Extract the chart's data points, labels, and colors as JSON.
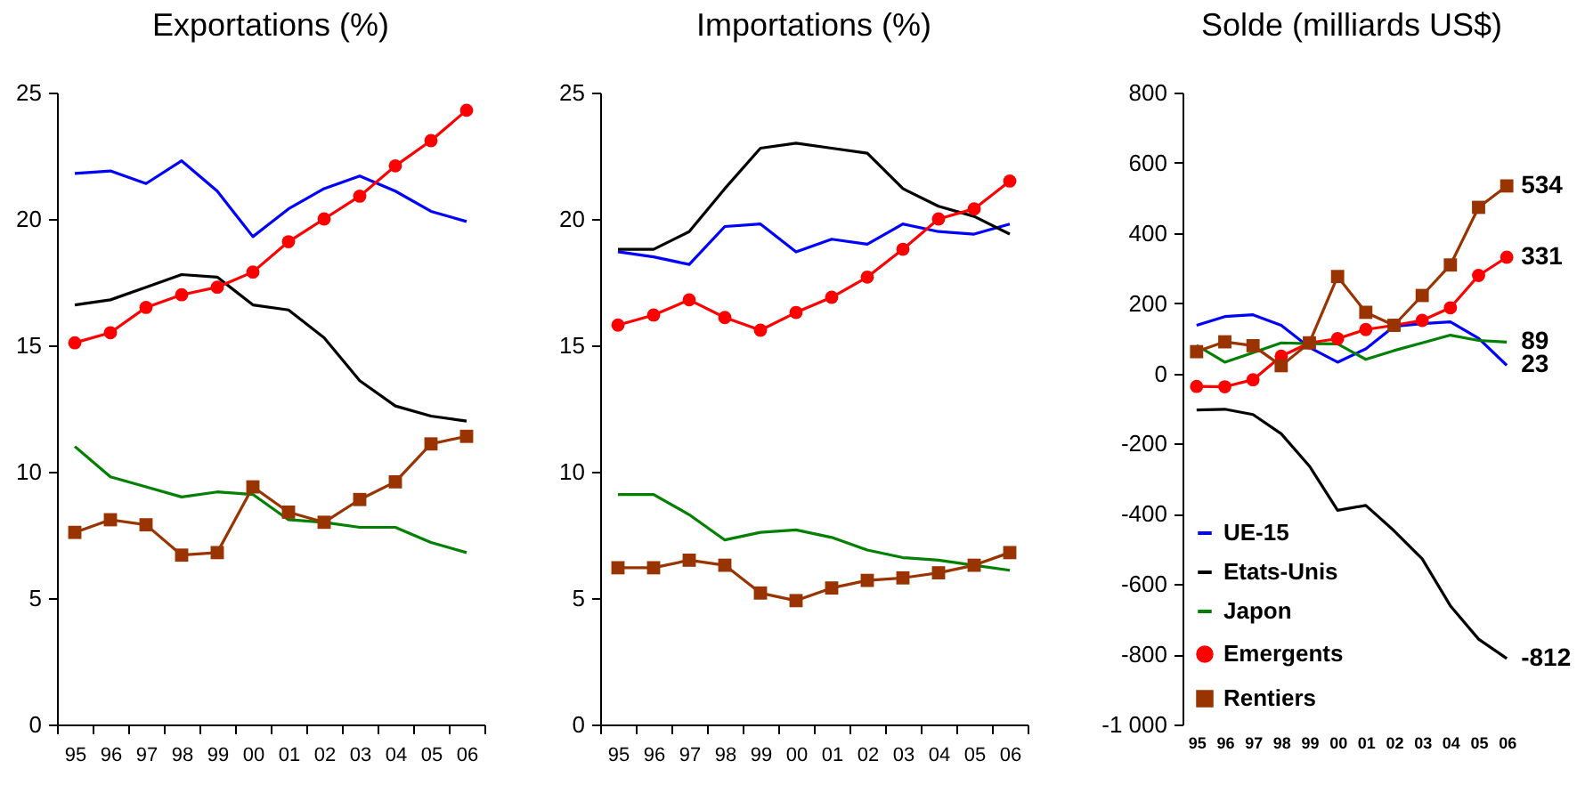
{
  "chart_data": [
    {
      "type": "line",
      "title": "Exportations (%)",
      "categories": [
        "95",
        "96",
        "97",
        "98",
        "99",
        "00",
        "01",
        "02",
        "03",
        "04",
        "05",
        "06"
      ],
      "ylim": [
        0,
        25
      ],
      "yticks": [
        0,
        5,
        10,
        15,
        20,
        25
      ],
      "legend": false,
      "series": [
        {
          "color": "#0000ff",
          "marker": "none",
          "values": [
            21.8,
            21.9,
            21.4,
            22.3,
            21.1,
            19.3,
            20.4,
            21.2,
            21.7,
            21.1,
            20.3,
            19.9
          ]
        },
        {
          "color": "#000000",
          "marker": "none",
          "values": [
            16.6,
            16.8,
            17.3,
            17.8,
            17.7,
            16.6,
            16.4,
            15.3,
            13.6,
            12.6,
            12.2,
            12.0
          ]
        },
        {
          "color": "#008000",
          "marker": "none",
          "values": [
            11.0,
            9.8,
            9.4,
            9.0,
            9.2,
            9.1,
            8.1,
            8.0,
            7.8,
            7.8,
            7.2,
            6.8
          ]
        },
        {
          "color": "#ff0000",
          "marker": "circle",
          "values": [
            15.1,
            15.5,
            16.5,
            17.0,
            17.3,
            17.9,
            19.1,
            20.0,
            20.9,
            22.1,
            23.1,
            24.3
          ]
        },
        {
          "color": "#993300",
          "marker": "square",
          "values": [
            7.6,
            8.1,
            7.9,
            6.7,
            6.8,
            9.4,
            8.4,
            8.0,
            8.9,
            9.6,
            11.1,
            11.4
          ]
        }
      ]
    },
    {
      "type": "line",
      "title": "Importations (%)",
      "categories": [
        "95",
        "96",
        "97",
        "98",
        "99",
        "00",
        "01",
        "02",
        "03",
        "04",
        "05",
        "06"
      ],
      "ylim": [
        0,
        25
      ],
      "yticks": [
        0,
        5,
        10,
        15,
        20,
        25
      ],
      "legend": false,
      "series": [
        {
          "color": "#0000ff",
          "marker": "none",
          "values": [
            18.7,
            18.5,
            18.2,
            19.7,
            19.8,
            18.7,
            19.2,
            19.0,
            19.8,
            19.5,
            19.4,
            19.8
          ]
        },
        {
          "color": "#000000",
          "marker": "none",
          "values": [
            18.8,
            18.8,
            19.5,
            21.2,
            22.8,
            23.0,
            22.8,
            22.6,
            21.2,
            20.5,
            20.1,
            19.4
          ]
        },
        {
          "color": "#008000",
          "marker": "none",
          "values": [
            9.1,
            9.1,
            8.3,
            7.3,
            7.6,
            7.7,
            7.4,
            6.9,
            6.6,
            6.5,
            6.3,
            6.1
          ]
        },
        {
          "color": "#ff0000",
          "marker": "circle",
          "values": [
            15.8,
            16.2,
            16.8,
            16.1,
            15.6,
            16.3,
            16.9,
            17.7,
            18.8,
            20.0,
            20.4,
            21.5
          ]
        },
        {
          "color": "#993300",
          "marker": "square",
          "values": [
            6.2,
            6.2,
            6.5,
            6.3,
            5.2,
            4.9,
            5.4,
            5.7,
            5.8,
            6.0,
            6.3,
            6.8
          ]
        }
      ]
    },
    {
      "type": "line",
      "title": "Solde (milliards US$)",
      "categories": [
        "95",
        "96",
        "97",
        "98",
        "99",
        "00",
        "01",
        "02",
        "03",
        "04",
        "05",
        "06"
      ],
      "ylim": [
        -1000,
        800
      ],
      "yticks": [
        {
          "value": -1000,
          "label": "-1 000"
        },
        {
          "value": -800,
          "label": "-800"
        },
        {
          "value": -600,
          "label": "-600"
        },
        {
          "value": -400,
          "label": "-400"
        },
        {
          "value": -200,
          "label": "-200"
        },
        0,
        200,
        400,
        600,
        800
      ],
      "legend": "bottom left",
      "series": [
        {
          "name": "UE-15",
          "color": "#0000ff",
          "marker": "none",
          "values": [
            137,
            162,
            167,
            137,
            74,
            32,
            70,
            134,
            142,
            147,
            100,
            23
          ],
          "value_labels": [
            null,
            null,
            null,
            null,
            null,
            null,
            null,
            null,
            null,
            null,
            null,
            "23"
          ]
        },
        {
          "name": "Etats-Unis",
          "color": "#000000",
          "marker": "none",
          "values": [
            -104,
            -102,
            -117,
            -172,
            -264,
            -390,
            -376,
            -448,
            -528,
            -662,
            -757,
            -812
          ],
          "value_labels": [
            null,
            null,
            null,
            null,
            null,
            null,
            null,
            null,
            null,
            null,
            null,
            "-812"
          ]
        },
        {
          "name": "Japon",
          "color": "#008000",
          "marker": "none",
          "values": [
            80,
            32,
            59,
            87,
            85,
            84,
            40,
            65,
            87,
            109,
            94,
            89
          ],
          "value_labels": [
            null,
            null,
            null,
            null,
            null,
            null,
            null,
            null,
            null,
            null,
            null,
            "89"
          ]
        },
        {
          "name": "Emergents",
          "color": "#ff0000",
          "marker": "circle",
          "values": [
            -37,
            -38,
            -18,
            49,
            87,
            99,
            125,
            137,
            151,
            187,
            279,
            331
          ],
          "value_labels": [
            null,
            null,
            null,
            null,
            null,
            null,
            null,
            null,
            null,
            null,
            null,
            "331"
          ]
        },
        {
          "name": "Rentiers",
          "color": "#993300",
          "marker": "square",
          "values": [
            62,
            90,
            79,
            22,
            87,
            276,
            174,
            137,
            222,
            309,
            473,
            534
          ],
          "value_labels": [
            null,
            null,
            null,
            null,
            null,
            null,
            null,
            null,
            null,
            null,
            null,
            "534"
          ]
        }
      ]
    }
  ]
}
